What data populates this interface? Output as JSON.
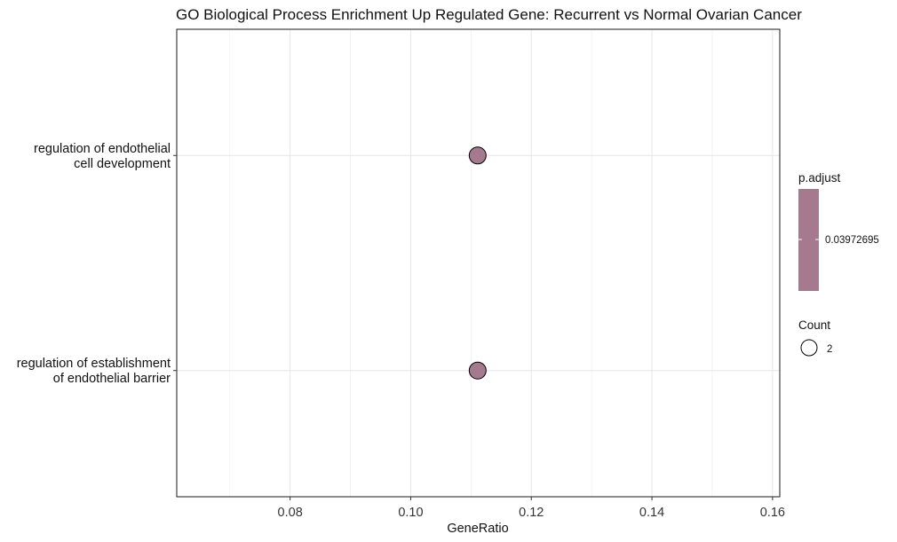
{
  "chart_data": {
    "type": "scatter",
    "title": "GO Biological Process Enrichment Up Regulated Gene: Recurrent vs Normal Ovarian Cancer",
    "xlabel": "GeneRatio",
    "ylabel": "",
    "xlim": [
      0.0612,
      0.1612
    ],
    "xticks": [
      0.08,
      0.1,
      0.12,
      0.14,
      0.16
    ],
    "xtick_labels": [
      "0.08",
      "0.10",
      "0.12",
      "0.14",
      "0.16"
    ],
    "categories": [
      "regulation of endothelial\ncell development",
      "regulation of establishment\nof endothelial barrier"
    ],
    "points": [
      {
        "category": "regulation of endothelial\ncell development",
        "x": 0.1111,
        "count": 2,
        "p_adjust": 0.03972695
      },
      {
        "category": "regulation of establishment\nof endothelial barrier",
        "x": 0.1111,
        "count": 2,
        "p_adjust": 0.03972695
      }
    ],
    "grid": true,
    "legend": {
      "position": "right",
      "color": {
        "title": "p.adjust",
        "label": "0.03972695",
        "color": "#a57a8f"
      },
      "size": {
        "title": "Count",
        "label": "2"
      }
    },
    "point_color": "#a57a8f"
  }
}
